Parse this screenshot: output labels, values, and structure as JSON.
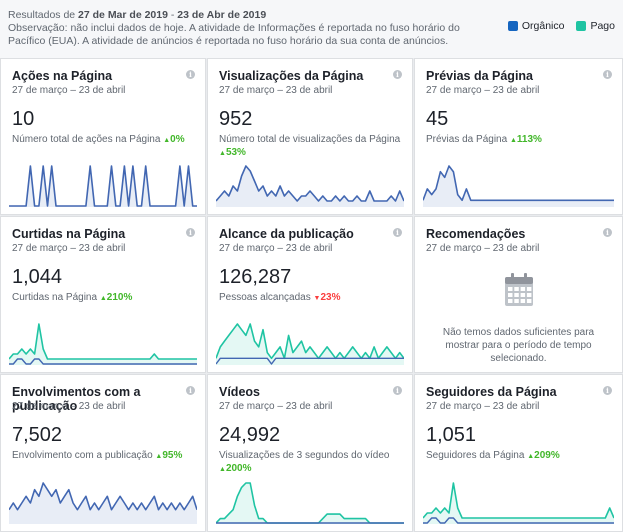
{
  "header": {
    "range_prefix": "Resultados de ",
    "range_start": "27 de Mar de 2019",
    "range_sep": " - ",
    "range_end": "23 de Abr de 2019",
    "note": "Observação: não inclui dados de hoje. A atividade de Informações é reportada no fuso horário do Pacífico (EUA). A atividade de anúncios é reportada no fuso horário da sua conta de anúncios."
  },
  "legend": {
    "organic_label": "Orgânico",
    "paid_label": "Pago",
    "organic_color": "#1565c0",
    "paid_color": "#1fc4a3"
  },
  "cards": [
    {
      "title": "Ações na Página",
      "date": "27 de março – 23 de abril",
      "value": "10",
      "desc": "Número total de ações na Página",
      "change": "0%",
      "dir": "up",
      "line": "blue",
      "series": [
        0,
        0,
        0,
        0,
        0,
        1,
        0,
        0,
        1,
        0,
        1,
        0,
        0,
        0,
        0,
        0,
        0,
        0,
        0,
        1,
        0,
        0,
        0,
        0,
        1,
        0,
        0,
        1,
        0,
        1,
        0,
        0,
        1,
        0,
        0,
        0,
        0,
        0,
        0,
        0,
        1,
        0,
        1,
        0,
        0
      ]
    },
    {
      "title": "Visualizações da Página",
      "date": "27 de março – 23 de abril",
      "value": "952",
      "desc": "Número total de visualizações da Página",
      "change": "53%",
      "dir": "up",
      "line": "blue",
      "series": [
        1,
        2,
        3,
        2,
        4,
        3,
        6,
        8,
        7,
        5,
        3,
        4,
        2,
        3,
        2,
        4,
        2,
        3,
        2,
        1,
        2,
        2,
        3,
        2,
        1,
        2,
        1,
        1,
        2,
        1,
        2,
        1,
        1,
        2,
        1,
        1,
        3,
        1,
        1,
        1,
        1,
        2,
        1,
        3,
        1
      ]
    },
    {
      "title": "Prévias da Página",
      "date": "27 de março – 23 de abril",
      "value": "45",
      "desc": "Prévias da Página",
      "change": "113%",
      "dir": "up",
      "line": "blue",
      "series": [
        1,
        3,
        2,
        3,
        6,
        5,
        7,
        6,
        2,
        1,
        3,
        1,
        1,
        1,
        1,
        1,
        1,
        1,
        1,
        1,
        1,
        1,
        1,
        1,
        1,
        1,
        1,
        1,
        1,
        1,
        1,
        1,
        1,
        1,
        1,
        1,
        1,
        1,
        1,
        1,
        1,
        1,
        1,
        1,
        1
      ]
    },
    {
      "title": "Curtidas na Página",
      "date": "27 de março – 23 de abril",
      "value": "1,044",
      "desc": "Curtidas na Página",
      "change": "210%",
      "dir": "up",
      "line": "both",
      "series": [
        1,
        2,
        2,
        3,
        2,
        3,
        2,
        8,
        3,
        1,
        1,
        1,
        1,
        1,
        1,
        1,
        1,
        1,
        1,
        1,
        1,
        1,
        1,
        1,
        1,
        1,
        1,
        1,
        1,
        1,
        1,
        1,
        1,
        1,
        2,
        1,
        1,
        1,
        1,
        1,
        1,
        1,
        1,
        1,
        1
      ],
      "series2": [
        0,
        0,
        1,
        1,
        0,
        0,
        1,
        1,
        0,
        0,
        0,
        0,
        0,
        0,
        0,
        0,
        0,
        0,
        0,
        0,
        0,
        0,
        0,
        0,
        0,
        0,
        0,
        0,
        0,
        0,
        0,
        0,
        0,
        0,
        0,
        0,
        0,
        0,
        0,
        0,
        0,
        0,
        0,
        0,
        0
      ]
    },
    {
      "title": "Alcance da publicação",
      "date": "27 de março – 23 de abril",
      "value": "126,287",
      "desc": "Pessoas alcançadas",
      "change": "23%",
      "dir": "down",
      "line": "both",
      "series": [
        1,
        3,
        4,
        5,
        6,
        7,
        6,
        5,
        7,
        4,
        3,
        6,
        2,
        1,
        2,
        3,
        1,
        5,
        2,
        3,
        4,
        2,
        3,
        2,
        1,
        2,
        3,
        2,
        1,
        2,
        1,
        2,
        3,
        2,
        1,
        2,
        1,
        3,
        1,
        2,
        3,
        2,
        1,
        2,
        1
      ],
      "series2": [
        0,
        1,
        1,
        1,
        1,
        1,
        1,
        1,
        1,
        1,
        1,
        1,
        1,
        0,
        1,
        1,
        1,
        1,
        1,
        1,
        1,
        1,
        1,
        1,
        1,
        1,
        1,
        1,
        1,
        1,
        1,
        1,
        1,
        1,
        1,
        1,
        1,
        1,
        1,
        1,
        1,
        1,
        1,
        1,
        1
      ]
    },
    {
      "title": "Recomendações",
      "date": "27 de março – 23 de abril",
      "empty": "Não temos dados suficientes para mostrar para o período de tempo selecionado."
    },
    {
      "title": "Envolvimentos com a publicação",
      "date": "27 de março – 23 de abril",
      "value": "7,502",
      "desc": "Envolvimento com a publicação",
      "change": "95%",
      "dir": "up",
      "line": "blue",
      "series": [
        2,
        3,
        2,
        3,
        4,
        3,
        5,
        4,
        6,
        5,
        4,
        5,
        3,
        4,
        5,
        3,
        2,
        3,
        4,
        2,
        3,
        2,
        3,
        4,
        2,
        3,
        4,
        3,
        2,
        3,
        2,
        3,
        2,
        3,
        4,
        2,
        3,
        2,
        3,
        2,
        3,
        2,
        3,
        4,
        2
      ]
    },
    {
      "title": "Vídeos",
      "date": "27 de março – 23 de abril",
      "value": "24,992",
      "desc": "Visualizações de 3 segundos do vídeo",
      "change": "200%",
      "dir": "up",
      "line": "both",
      "series": [
        0,
        1,
        1,
        2,
        3,
        6,
        8,
        9,
        9,
        4,
        1,
        1,
        0,
        0,
        0,
        0,
        0,
        0,
        0,
        0,
        0,
        0,
        0,
        0,
        0,
        1,
        2,
        2,
        2,
        2,
        1,
        1,
        1,
        1,
        1,
        1,
        0,
        0,
        0,
        0,
        0,
        0,
        0,
        0,
        0
      ],
      "series2": [
        0,
        0,
        0,
        0,
        0,
        0,
        0,
        0,
        0,
        0,
        0,
        0,
        0,
        0,
        0,
        0,
        0,
        0,
        0,
        0,
        0,
        0,
        0,
        0,
        0,
        0,
        0,
        0,
        0,
        0,
        0,
        0,
        0,
        0,
        0,
        0,
        0,
        0,
        0,
        0,
        0,
        0,
        0,
        0,
        0
      ]
    },
    {
      "title": "Seguidores da Página",
      "date": "27 de março – 23 de abril",
      "value": "1,051",
      "desc": "Seguidores da Página",
      "change": "209%",
      "dir": "up",
      "line": "both",
      "series": [
        1,
        2,
        2,
        3,
        2,
        3,
        2,
        8,
        3,
        1,
        1,
        1,
        1,
        1,
        1,
        1,
        1,
        1,
        1,
        1,
        1,
        1,
        1,
        1,
        1,
        1,
        1,
        1,
        1,
        1,
        1,
        1,
        1,
        1,
        1,
        1,
        1,
        1,
        1,
        1,
        1,
        1,
        1,
        3,
        1
      ],
      "series2": [
        0,
        0,
        1,
        1,
        0,
        0,
        1,
        1,
        0,
        0,
        0,
        0,
        0,
        0,
        0,
        0,
        0,
        0,
        0,
        0,
        0,
        0,
        0,
        0,
        0,
        0,
        0,
        0,
        0,
        0,
        0,
        0,
        0,
        0,
        0,
        0,
        0,
        0,
        0,
        0,
        0,
        0,
        0,
        0,
        0
      ]
    }
  ]
}
